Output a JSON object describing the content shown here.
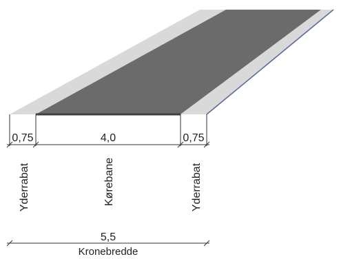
{
  "diagram": {
    "colors": {
      "shoulder": "#d9d9d9",
      "carriageway": "#6b6b6b",
      "carriageway_edge": "#404040",
      "edge_line": "#5a6c9a",
      "dimension_line": "#333333"
    },
    "segments": {
      "left_shoulder": {
        "width": "0,75",
        "name": "Yderrabat"
      },
      "carriageway": {
        "width": "4,0",
        "name": "Kørebane"
      },
      "right_shoulder": {
        "width": "0,75",
        "name": "Yderrabat"
      }
    },
    "total": {
      "width": "5,5",
      "name": "Kronebredde"
    }
  }
}
